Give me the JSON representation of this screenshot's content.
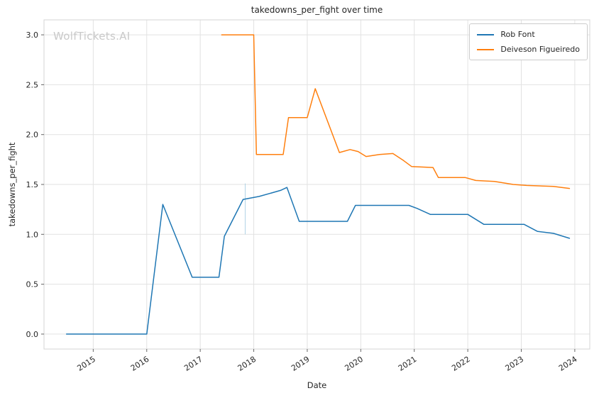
{
  "watermark": "WolfTickets.AI",
  "chart_data": {
    "type": "line",
    "title": "takedowns_per_fight over time",
    "xlabel": "Date",
    "ylabel": "takedowns_per_fight",
    "xlim": [
      2014.08,
      2024.28
    ],
    "ylim": [
      -0.15,
      3.15
    ],
    "grid": true,
    "legend_position": "upper right",
    "x_tick_labels": [
      "2015",
      "2016",
      "2017",
      "2018",
      "2019",
      "2020",
      "2021",
      "2022",
      "2023",
      "2024"
    ],
    "y_tick_labels": [
      "0.0",
      "0.5",
      "1.0",
      "1.5",
      "2.0",
      "2.5",
      "3.0"
    ],
    "colors": {
      "grid": "#e2e2e2",
      "spine": "#d5d5d5",
      "tick": "#666666",
      "text": "#262626"
    },
    "series": [
      {
        "name": "Rob Font",
        "color": "#1f77b4",
        "points": [
          [
            2014.5,
            0.0
          ],
          [
            2015.0,
            0.0
          ],
          [
            2015.5,
            0.0
          ],
          [
            2016.0,
            0.0
          ],
          [
            2016.3,
            1.3
          ],
          [
            2016.85,
            0.57
          ],
          [
            2017.35,
            0.57
          ],
          [
            2017.45,
            0.98
          ],
          [
            2017.8,
            1.35
          ],
          [
            2018.1,
            1.38
          ],
          [
            2018.5,
            1.44
          ],
          [
            2018.62,
            1.47
          ],
          [
            2018.85,
            1.13
          ],
          [
            2019.75,
            1.13
          ],
          [
            2019.9,
            1.29
          ],
          [
            2020.4,
            1.29
          ],
          [
            2020.9,
            1.29
          ],
          [
            2021.05,
            1.26
          ],
          [
            2021.3,
            1.2
          ],
          [
            2022.0,
            1.2
          ],
          [
            2022.3,
            1.1
          ],
          [
            2023.05,
            1.1
          ],
          [
            2023.3,
            1.03
          ],
          [
            2023.6,
            1.01
          ],
          [
            2023.9,
            0.96
          ]
        ]
      },
      {
        "name": "Deiveson Figueiredo",
        "color": "#ff7f0e",
        "points": [
          [
            2017.4,
            3.0
          ],
          [
            2018.0,
            3.0
          ],
          [
            2018.05,
            1.8
          ],
          [
            2018.55,
            1.8
          ],
          [
            2018.65,
            2.17
          ],
          [
            2019.0,
            2.17
          ],
          [
            2019.15,
            2.46
          ],
          [
            2019.6,
            1.82
          ],
          [
            2019.8,
            1.85
          ],
          [
            2019.95,
            1.83
          ],
          [
            2020.1,
            1.78
          ],
          [
            2020.35,
            1.8
          ],
          [
            2020.6,
            1.81
          ],
          [
            2020.8,
            1.74
          ],
          [
            2020.95,
            1.68
          ],
          [
            2021.35,
            1.67
          ],
          [
            2021.45,
            1.57
          ],
          [
            2021.95,
            1.57
          ],
          [
            2022.15,
            1.54
          ],
          [
            2022.5,
            1.53
          ],
          [
            2022.85,
            1.5
          ],
          [
            2023.1,
            1.49
          ],
          [
            2023.6,
            1.48
          ],
          [
            2023.9,
            1.46
          ]
        ]
      }
    ],
    "annotation_line": {
      "x": 2017.84,
      "y1": 1.0,
      "y2": 1.51,
      "color": "#9ecae1"
    }
  }
}
